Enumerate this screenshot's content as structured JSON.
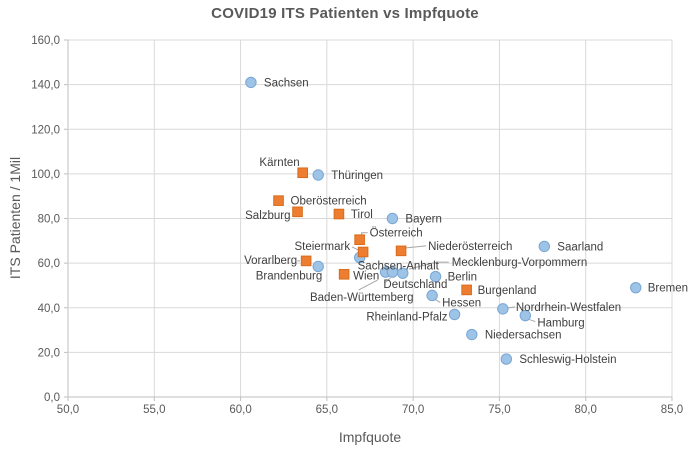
{
  "chart_data": {
    "type": "scatter",
    "title": "COVID19 ITS Patienten vs Impfquote",
    "xlabel": "Impfquote",
    "ylabel": "ITS Patienten / 1Mil",
    "xlim": [
      50,
      85
    ],
    "ylim": [
      0,
      160
    ],
    "grid": true,
    "legend": "none",
    "x_tick_values": [
      50,
      55,
      60,
      65,
      70,
      75,
      80,
      85
    ],
    "x_tick_labels": [
      "50,0",
      "55,0",
      "60,0",
      "65,0",
      "70,0",
      "75,0",
      "80,0",
      "85,0"
    ],
    "y_tick_values": [
      0,
      20,
      40,
      60,
      80,
      100,
      120,
      140,
      160
    ],
    "y_tick_labels": [
      "0,0",
      "20,0",
      "40,0",
      "60,0",
      "80,0",
      "100,0",
      "120,0",
      "140,0",
      "160,0"
    ],
    "colors": {
      "title_text": "#595959",
      "tick_text": "#595959",
      "label_text": "#404040",
      "grid": "#D9D9D9",
      "axis": "#BFBFBF",
      "leader": "#A6A6A6",
      "blue_fill": "#9DC3E6",
      "blue_stroke": "#78A6D3",
      "orange_fill": "#ED7D31",
      "orange_stroke": "#D96B1C"
    },
    "series": [
      {
        "id": "blue-circles",
        "marker": "circle",
        "fill": "#9DC3E6",
        "stroke": "#78A6D3",
        "points": [
          {
            "label": "Sachsen",
            "x": 60.6,
            "y": 141,
            "dx": 13,
            "dy": 0,
            "anchor": "start"
          },
          {
            "label": "Thüringen",
            "x": 64.5,
            "y": 99.5,
            "dx": 13,
            "dy": 0,
            "anchor": "start"
          },
          {
            "label": "Bayern",
            "x": 68.8,
            "y": 80,
            "dx": 13,
            "dy": 0,
            "anchor": "start"
          },
          {
            "label": "Saarland",
            "x": 77.6,
            "y": 67.5,
            "dx": 13,
            "dy": 0,
            "anchor": "start"
          },
          {
            "label": "Sachsen-Anhalt",
            "x": 66.9,
            "y": 62.5,
            "dx": -2,
            "dy": 8,
            "anchor": "start"
          },
          {
            "label": "Brandenburg",
            "x": 64.5,
            "y": 58.5,
            "dx": 4,
            "dy": 9,
            "anchor": "end"
          },
          {
            "label": "Baden-Württemberg",
            "x": 68.4,
            "y": 56,
            "dx": 28,
            "dy": 25,
            "anchor": "end",
            "leader": [
              -8,
              8,
              -27,
              18
            ]
          },
          {
            "label": "Deutschland",
            "x": 68.8,
            "y": 56,
            "dx": -9,
            "dy": 12,
            "anchor": "start",
            "leader": [
              -2,
              6,
              -8,
              11
            ]
          },
          {
            "label": "Mecklenburg-Vorpommern",
            "x": 69.4,
            "y": 55.5,
            "dx": 49,
            "dy": -11,
            "anchor": "start",
            "leader": [
              6,
              -4,
              34,
              -11,
              46,
              -11
            ]
          },
          {
            "label": "Berlin",
            "x": 71.3,
            "y": 54,
            "dx": 12,
            "dy": 0,
            "anchor": "start"
          },
          {
            "label": "Hessen",
            "x": 71.1,
            "y": 45.5,
            "dx": 10,
            "dy": 7,
            "anchor": "start",
            "leader": [
              3,
              4,
              8,
              7
            ]
          },
          {
            "label": "Nordrhein-Westfalen",
            "x": 75.2,
            "y": 39.5,
            "dx": 13,
            "dy": -2,
            "anchor": "start",
            "leader": [
              5,
              -1,
              12,
              -2
            ]
          },
          {
            "label": "Rheinland-Pfalz",
            "x": 72.4,
            "y": 37,
            "dx": -7,
            "dy": 2,
            "anchor": "end"
          },
          {
            "label": "Hamburg",
            "x": 76.5,
            "y": 36.5,
            "dx": 12,
            "dy": 7,
            "anchor": "start",
            "leader": [
              4,
              4,
              10,
              6
            ]
          },
          {
            "label": "Niedersachsen",
            "x": 73.4,
            "y": 28,
            "dx": 13,
            "dy": 0,
            "anchor": "start"
          },
          {
            "label": "Bremen",
            "x": 82.9,
            "y": 49,
            "dx": 12,
            "dy": 0,
            "anchor": "start"
          },
          {
            "label": "Schleswig-Holstein",
            "x": 75.4,
            "y": 17,
            "dx": 13,
            "dy": 0,
            "anchor": "start"
          }
        ]
      },
      {
        "id": "orange-squares",
        "marker": "square",
        "fill": "#ED7D31",
        "stroke": "#D96B1C",
        "points": [
          {
            "label": "Kärnten",
            "x": 63.6,
            "y": 100.5,
            "dx": -3,
            "dy": -11,
            "anchor": "end"
          },
          {
            "label": "Oberösterreich",
            "x": 62.2,
            "y": 88,
            "dx": 12,
            "dy": 0,
            "anchor": "start"
          },
          {
            "label": "Salzburg",
            "x": 63.3,
            "y": 83,
            "dx": -7,
            "dy": 3,
            "anchor": "end"
          },
          {
            "label": "Tirol",
            "x": 65.7,
            "y": 82,
            "dx": 12,
            "dy": 0,
            "anchor": "start"
          },
          {
            "label": "Österreich",
            "x": 66.9,
            "y": 70.5,
            "dx": 10,
            "dy": -7,
            "anchor": "start",
            "leader": [
              2,
              -5,
              2,
              -7,
              8,
              -7
            ]
          },
          {
            "label": "Steiermark",
            "x": 67.1,
            "y": 65,
            "dx": -13,
            "dy": -6,
            "anchor": "end",
            "leader": [
              -11,
              -5,
              -5,
              -2
            ]
          },
          {
            "label": "Niederösterreich",
            "x": 69.3,
            "y": 65.5,
            "dx": 27,
            "dy": -5,
            "anchor": "start",
            "leader": [
              5,
              -3,
              25,
              -5
            ]
          },
          {
            "label": "Vorarlberg",
            "x": 63.8,
            "y": 61,
            "dx": -9,
            "dy": -1,
            "anchor": "end",
            "leader": [
              -9,
              0,
              -6,
              0
            ]
          },
          {
            "label": "Wien",
            "x": 66.0,
            "y": 55,
            "dx": 9,
            "dy": 1,
            "anchor": "start"
          },
          {
            "label": "Burgenland",
            "x": 73.1,
            "y": 48,
            "dx": 11,
            "dy": 0,
            "anchor": "start"
          }
        ]
      }
    ]
  }
}
